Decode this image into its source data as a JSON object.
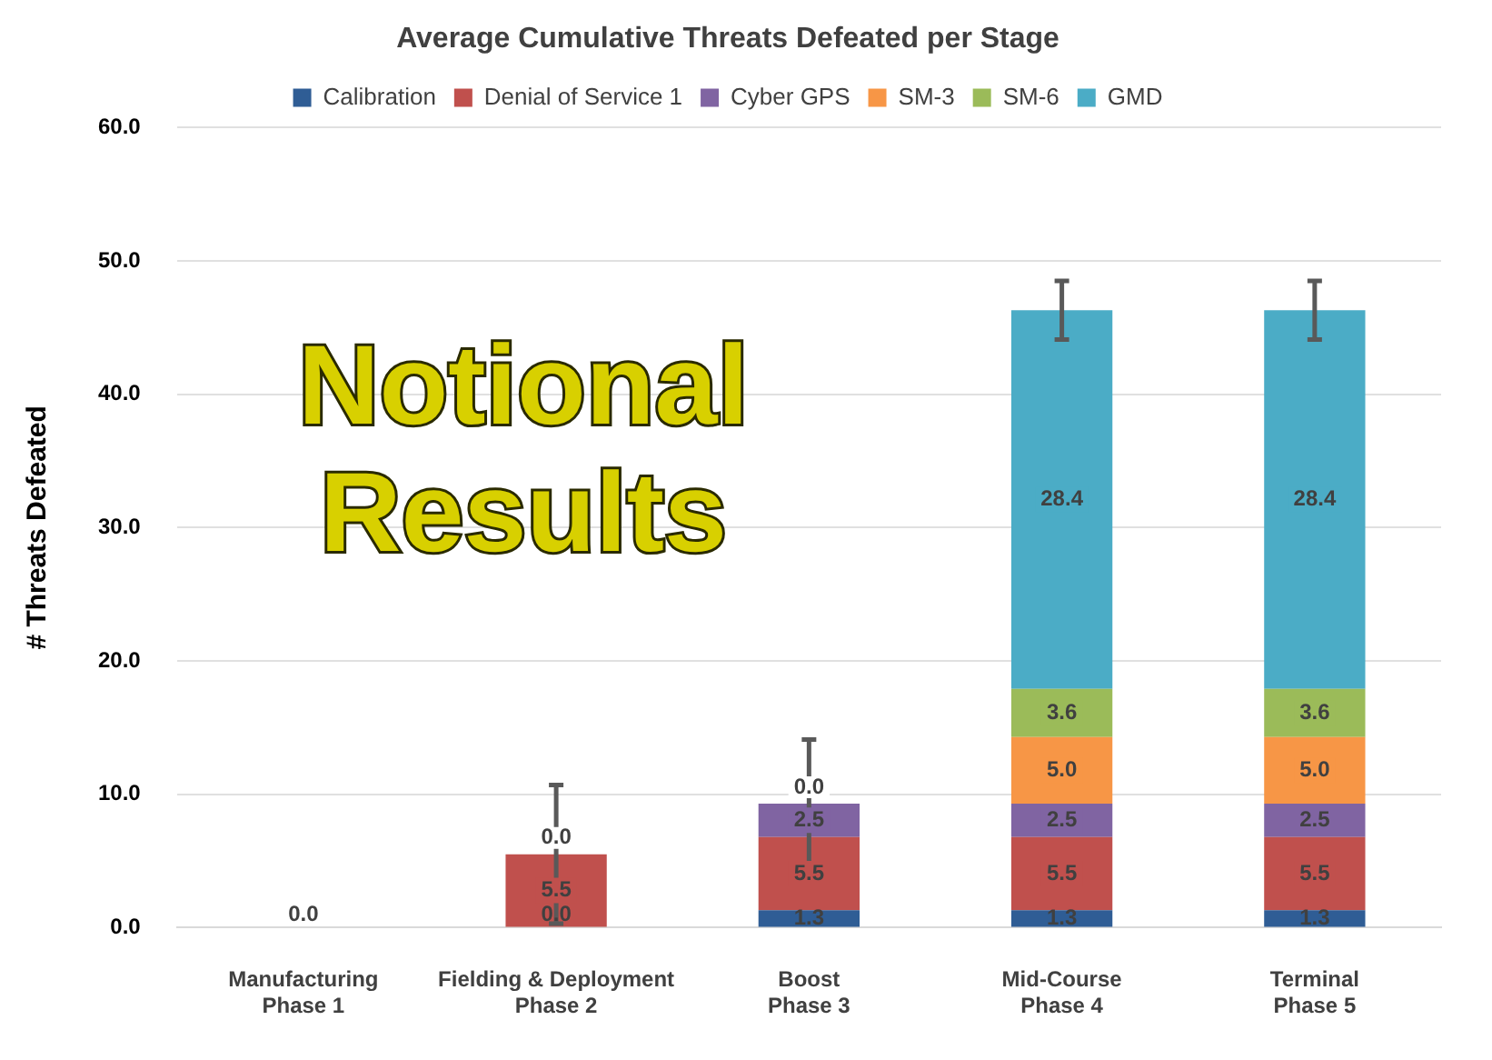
{
  "chart_data": {
    "type": "bar",
    "stacked": true,
    "title": "Average Cumulative Threats Defeated per Stage",
    "ylabel": "# Threats Defeated",
    "categories": [
      "Manufacturing\nPhase 1",
      "Fielding & Deployment\nPhase 2",
      "Boost\nPhase 3",
      "Mid-Course\nPhase 4",
      "Terminal\nPhase 5"
    ],
    "series": [
      {
        "name": "Calibration",
        "color": "#2f5d95",
        "values": [
          0,
          0,
          1.3,
          1.3,
          1.3
        ],
        "value_labels": [
          "0.0",
          "0.0",
          "1.3",
          "1.3",
          "1.3"
        ]
      },
      {
        "name": "Denial of Service 1",
        "color": "#c0504d",
        "values": [
          0,
          5.5,
          5.5,
          5.5,
          5.5
        ],
        "value_labels": [
          null,
          "5.5",
          "5.5",
          "5.5",
          "5.5"
        ]
      },
      {
        "name": "Cyber GPS",
        "color": "#8064a2",
        "values": [
          0,
          0,
          2.5,
          2.5,
          2.5
        ],
        "value_labels": [
          null,
          "0.0",
          "2.5",
          "2.5",
          "2.5"
        ]
      },
      {
        "name": "SM-3",
        "color": "#f79646",
        "values": [
          0,
          0,
          0,
          5.0,
          5.0
        ],
        "value_labels": [
          null,
          null,
          "0.0",
          "5.0",
          "5.0"
        ]
      },
      {
        "name": "SM-6",
        "color": "#9bbb59",
        "values": [
          0,
          0,
          0,
          3.6,
          3.6
        ],
        "value_labels": [
          null,
          null,
          null,
          "3.6",
          "3.6"
        ]
      },
      {
        "name": "GMD",
        "color": "#4bacc6",
        "values": [
          0,
          0,
          0,
          28.4,
          28.4
        ],
        "value_labels": [
          null,
          null,
          null,
          "28.4",
          "28.4"
        ],
        "errors": [
          null,
          5.2,
          4.8,
          2.2,
          2.2
        ]
      }
    ],
    "ylim": [
      0,
      60
    ],
    "yticks": [
      {
        "value": 0,
        "label": "0.0"
      },
      {
        "value": 10,
        "label": "10.0"
      },
      {
        "value": 20,
        "label": "20.0"
      },
      {
        "value": 30,
        "label": "30.0"
      },
      {
        "value": 40,
        "label": "40.0"
      },
      {
        "value": 50,
        "label": "50.0"
      },
      {
        "value": 60,
        "label": "60.0"
      }
    ],
    "grid": "y",
    "legend": "top",
    "annotations": [
      "Notional Results"
    ]
  }
}
